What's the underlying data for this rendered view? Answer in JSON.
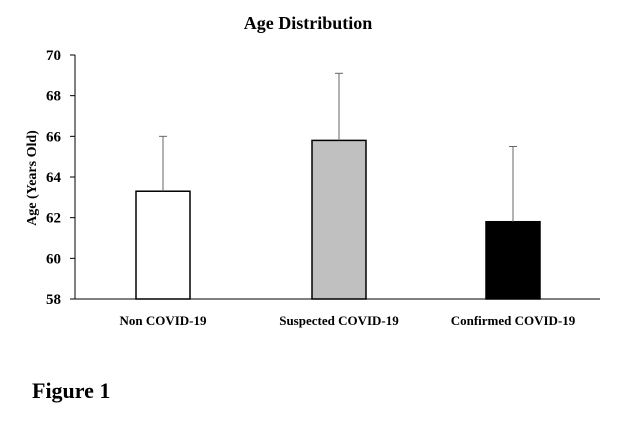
{
  "chart_data": {
    "type": "bar",
    "title": "Age Distribution",
    "xlabel": "",
    "ylabel": "Age (Years Old)",
    "ylim": [
      58,
      70
    ],
    "yticks": [
      58,
      60,
      62,
      64,
      66,
      68,
      70
    ],
    "grid": false,
    "legend": "none",
    "categories": [
      "Non COVID-19",
      "Suspected COVID-19",
      "Confirmed COVID-19"
    ],
    "values": [
      63.3,
      65.8,
      61.8
    ],
    "error_bars_upper": [
      2.7,
      3.3,
      3.7
    ],
    "colors": [
      "#ffffff",
      "#c0c0c0",
      "#000000"
    ]
  },
  "figure_label": "Figure 1"
}
